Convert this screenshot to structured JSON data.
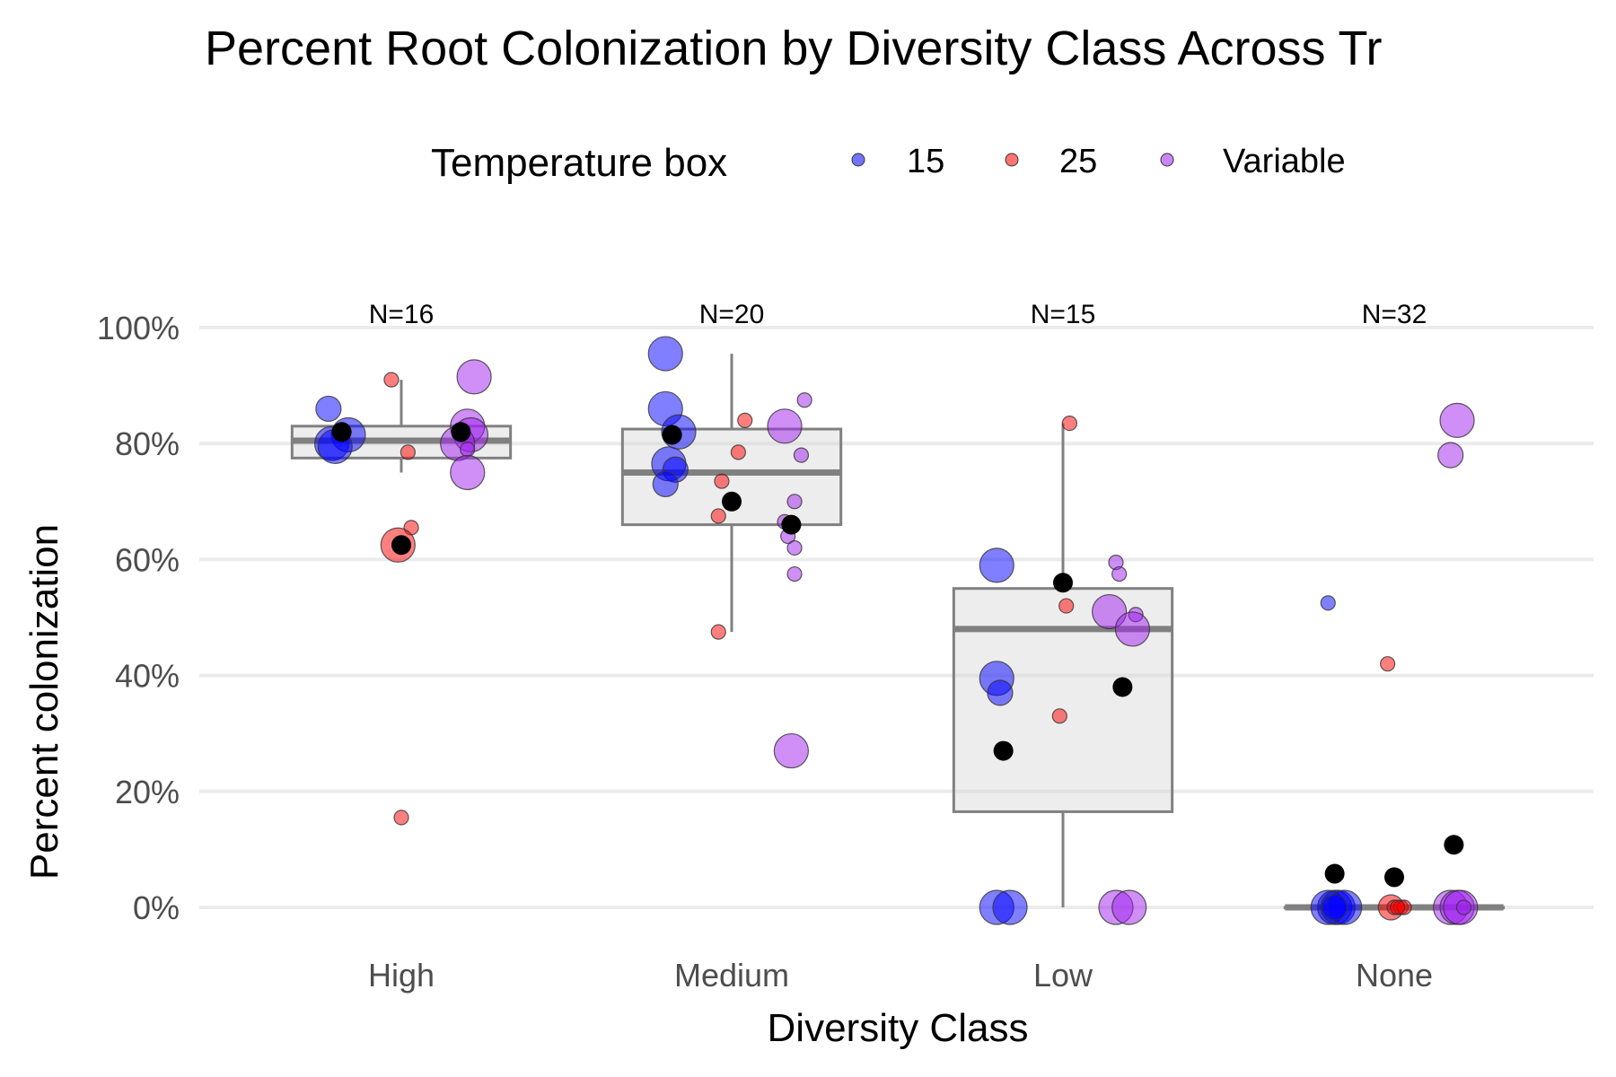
{
  "chart_data": {
    "type": "box",
    "title": "Percent Root Colonization by Diversity Class Across Tr",
    "xlabel": "Diversity Class",
    "ylabel": "Percent colonization",
    "categories": [
      "High",
      "Medium",
      "Low",
      "None"
    ],
    "ylim": [
      0,
      100
    ],
    "yticks": [
      0,
      20,
      40,
      60,
      80,
      100
    ],
    "ytick_labels": [
      "0%",
      "20%",
      "40%",
      "60%",
      "80%",
      "100%"
    ],
    "grid": "horizontal",
    "legend": {
      "title": "Temperature box",
      "position": "top",
      "entries": [
        {
          "label": "15",
          "color": "#0000ff"
        },
        {
          "label": "25",
          "color": "#ff0000"
        },
        {
          "label": "Variable",
          "color": "#a020f0"
        }
      ]
    },
    "n_labels": [
      "N=16",
      "N=20",
      "N=15",
      "N=32"
    ],
    "boxes": [
      {
        "category": "High",
        "whisker_low": 75,
        "q1": 77.5,
        "median": 80.5,
        "q3": 83,
        "whisker_high": 91
      },
      {
        "category": "Medium",
        "whisker_low": 47.5,
        "q1": 66,
        "median": 75,
        "q3": 82.5,
        "whisker_high": 95.5
      },
      {
        "category": "Low",
        "whisker_low": 0,
        "q1": 16.5,
        "median": 48,
        "q3": 55,
        "whisker_high": 83.5
      },
      {
        "category": "None",
        "whisker_low": 0,
        "q1": 0,
        "median": 0,
        "q3": 0,
        "whisker_high": 0
      }
    ],
    "series": [
      {
        "name": "15",
        "color": "#0000ff",
        "points": [
          {
            "category": "High",
            "offset": -0.22,
            "y": 86,
            "size": 2
          },
          {
            "category": "High",
            "offset": -0.16,
            "y": 81.5,
            "size": 3
          },
          {
            "category": "High",
            "offset": -0.21,
            "y": 80,
            "size": 3
          },
          {
            "category": "High",
            "offset": -0.2,
            "y": 79.5,
            "size": 3
          },
          {
            "category": "Medium",
            "offset": -0.2,
            "y": 95.5,
            "size": 3
          },
          {
            "category": "Medium",
            "offset": -0.2,
            "y": 86,
            "size": 3
          },
          {
            "category": "Medium",
            "offset": -0.16,
            "y": 82,
            "size": 3
          },
          {
            "category": "Medium",
            "offset": -0.19,
            "y": 76.5,
            "size": 3
          },
          {
            "category": "Medium",
            "offset": -0.17,
            "y": 75.5,
            "size": 2
          },
          {
            "category": "Medium",
            "offset": -0.2,
            "y": 73,
            "size": 2
          },
          {
            "category": "Low",
            "offset": -0.2,
            "y": 59,
            "size": 3
          },
          {
            "category": "Low",
            "offset": -0.2,
            "y": 39.5,
            "size": 3
          },
          {
            "category": "Low",
            "offset": -0.19,
            "y": 37,
            "size": 2
          },
          {
            "category": "Low",
            "offset": -0.2,
            "y": 0,
            "size": 3
          },
          {
            "category": "Low",
            "offset": -0.16,
            "y": 0,
            "size": 3
          },
          {
            "category": "None",
            "offset": -0.2,
            "y": 52.5,
            "size": 1
          },
          {
            "category": "None",
            "offset": -0.18,
            "y": 0,
            "size": 3
          },
          {
            "category": "None",
            "offset": -0.2,
            "y": 0,
            "size": 3
          },
          {
            "category": "None",
            "offset": -0.17,
            "y": 0,
            "size": 3
          },
          {
            "category": "None",
            "offset": -0.15,
            "y": 0,
            "size": 3
          },
          {
            "category": "None",
            "offset": -0.18,
            "y": 0,
            "size": 2
          }
        ]
      },
      {
        "name": "25",
        "color": "#ff0000",
        "points": [
          {
            "category": "High",
            "offset": -0.03,
            "y": 91,
            "size": 1
          },
          {
            "category": "High",
            "offset": 0.02,
            "y": 78.5,
            "size": 1
          },
          {
            "category": "High",
            "offset": 0.03,
            "y": 65.5,
            "size": 1
          },
          {
            "category": "High",
            "offset": -0.01,
            "y": 62.5,
            "size": 3
          },
          {
            "category": "High",
            "offset": 0.0,
            "y": 15.5,
            "size": 1
          },
          {
            "category": "Medium",
            "offset": 0.04,
            "y": 84,
            "size": 1
          },
          {
            "category": "Medium",
            "offset": 0.02,
            "y": 78.5,
            "size": 1
          },
          {
            "category": "Medium",
            "offset": -0.03,
            "y": 73.5,
            "size": 1
          },
          {
            "category": "Medium",
            "offset": -0.04,
            "y": 67.5,
            "size": 1
          },
          {
            "category": "Medium",
            "offset": -0.04,
            "y": 47.5,
            "size": 1
          },
          {
            "category": "Low",
            "offset": 0.02,
            "y": 83.5,
            "size": 1
          },
          {
            "category": "Low",
            "offset": 0.01,
            "y": 52,
            "size": 1
          },
          {
            "category": "Low",
            "offset": -0.01,
            "y": 33,
            "size": 1
          },
          {
            "category": "None",
            "offset": -0.02,
            "y": 42,
            "size": 1
          },
          {
            "category": "None",
            "offset": -0.01,
            "y": 0,
            "size": 2
          },
          {
            "category": "None",
            "offset": 0.0,
            "y": 0,
            "size": 1
          },
          {
            "category": "None",
            "offset": 0.02,
            "y": 0,
            "size": 1
          },
          {
            "category": "None",
            "offset": 0.03,
            "y": 0,
            "size": 1
          },
          {
            "category": "None",
            "offset": 0.01,
            "y": 0,
            "size": 1
          }
        ]
      },
      {
        "name": "Variable",
        "color": "#a020f0",
        "points": [
          {
            "category": "High",
            "offset": 0.22,
            "y": 91.5,
            "size": 3
          },
          {
            "category": "High",
            "offset": 0.2,
            "y": 83,
            "size": 3
          },
          {
            "category": "High",
            "offset": 0.21,
            "y": 81.5,
            "size": 3
          },
          {
            "category": "High",
            "offset": 0.17,
            "y": 80,
            "size": 3
          },
          {
            "category": "High",
            "offset": 0.2,
            "y": 79,
            "size": 1
          },
          {
            "category": "High",
            "offset": 0.2,
            "y": 75,
            "size": 3
          },
          {
            "category": "Medium",
            "offset": 0.22,
            "y": 87.5,
            "size": 1
          },
          {
            "category": "Medium",
            "offset": 0.16,
            "y": 83,
            "size": 3
          },
          {
            "category": "Medium",
            "offset": 0.21,
            "y": 78,
            "size": 1
          },
          {
            "category": "Medium",
            "offset": 0.19,
            "y": 70,
            "size": 1
          },
          {
            "category": "Medium",
            "offset": 0.16,
            "y": 66.5,
            "size": 1
          },
          {
            "category": "Medium",
            "offset": 0.17,
            "y": 64,
            "size": 1
          },
          {
            "category": "Medium",
            "offset": 0.19,
            "y": 62,
            "size": 1
          },
          {
            "category": "Medium",
            "offset": 0.19,
            "y": 57.5,
            "size": 1
          },
          {
            "category": "Medium",
            "offset": 0.18,
            "y": 27,
            "size": 3
          },
          {
            "category": "Low",
            "offset": 0.16,
            "y": 59.5,
            "size": 1
          },
          {
            "category": "Low",
            "offset": 0.17,
            "y": 57.5,
            "size": 1
          },
          {
            "category": "Low",
            "offset": 0.14,
            "y": 51,
            "size": 3
          },
          {
            "category": "Low",
            "offset": 0.22,
            "y": 50.5,
            "size": 1
          },
          {
            "category": "Low",
            "offset": 0.21,
            "y": 48,
            "size": 3
          },
          {
            "category": "Low",
            "offset": 0.16,
            "y": 0,
            "size": 3
          },
          {
            "category": "Low",
            "offset": 0.2,
            "y": 0,
            "size": 3
          },
          {
            "category": "None",
            "offset": 0.19,
            "y": 84,
            "size": 3
          },
          {
            "category": "None",
            "offset": 0.17,
            "y": 78,
            "size": 2
          },
          {
            "category": "None",
            "offset": 0.17,
            "y": 0,
            "size": 3
          },
          {
            "category": "None",
            "offset": 0.19,
            "y": 0,
            "size": 3
          },
          {
            "category": "None",
            "offset": 0.2,
            "y": 0,
            "size": 3
          },
          {
            "category": "None",
            "offset": 0.21,
            "y": 0,
            "size": 1
          }
        ]
      }
    ],
    "means": {
      "color": "#000000",
      "points": [
        {
          "category": "High",
          "offset": -0.18,
          "y": 82
        },
        {
          "category": "High",
          "offset": 0.0,
          "y": 62.5
        },
        {
          "category": "High",
          "offset": 0.18,
          "y": 82
        },
        {
          "category": "Medium",
          "offset": -0.18,
          "y": 81.5
        },
        {
          "category": "Medium",
          "offset": 0.0,
          "y": 70
        },
        {
          "category": "Medium",
          "offset": 0.18,
          "y": 66
        },
        {
          "category": "Low",
          "offset": -0.18,
          "y": 27
        },
        {
          "category": "Low",
          "offset": 0.0,
          "y": 56
        },
        {
          "category": "Low",
          "offset": 0.18,
          "y": 38
        },
        {
          "category": "None",
          "offset": -0.18,
          "y": 5.8
        },
        {
          "category": "None",
          "offset": 0.0,
          "y": 5.2
        },
        {
          "category": "None",
          "offset": 0.18,
          "y": 10.8
        }
      ]
    }
  }
}
